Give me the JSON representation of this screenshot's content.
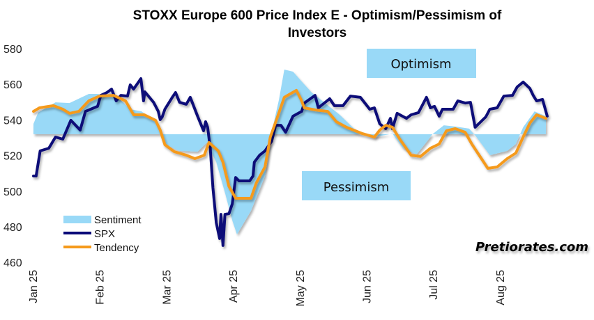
{
  "chart_data": {
    "type": "line",
    "title": "STOXX Europe 600 Price Index E - Optimism/Pessimism of Investors",
    "title_lines": [
      "STOXX Europe 600 Price Index E - Optimism/Pessimism of",
      "Investors"
    ],
    "xlabel": "",
    "ylabel": "",
    "x_unit": "months since Jan 1 2025",
    "xlim": [
      0,
      7.7
    ],
    "ylim": [
      460,
      580
    ],
    "yticks": [
      "580",
      "560",
      "540",
      "520",
      "500",
      "480",
      "460"
    ],
    "ytick_values": [
      580,
      560,
      540,
      520,
      500,
      480,
      460
    ],
    "xticks": [
      "Jan 25",
      "Feb 25",
      "Mar 25",
      "Apr 25",
      "May 25",
      "Jun 25",
      "Jul 25",
      "Aug 25"
    ],
    "xtick_values": [
      0,
      1,
      2,
      3,
      4,
      5,
      6,
      7
    ],
    "sentiment_baseline": 532,
    "legend_position": "bottom-left",
    "legend": [
      "Sentiment",
      "SPX",
      "Tendency"
    ],
    "annotations": {
      "optimism": "Optimism",
      "pessimism": "Pessimism",
      "brand": "Pretiorates.com"
    },
    "colors": {
      "sentiment": "#99d9f7",
      "spx": "#0a0a78",
      "tendency": "#f59a1b",
      "annotation_box": "#99d9f7"
    },
    "series": [
      {
        "name": "Sentiment",
        "kind": "area",
        "x": [
          0,
          0.07,
          0.33,
          0.54,
          0.83,
          0.96,
          1.24,
          1.45,
          1.62,
          1.83,
          1.9,
          1.97,
          2.18,
          2.46,
          2.6,
          2.74,
          2.87,
          2.98,
          3.05,
          3.26,
          3.47,
          3.57,
          3.68,
          3.76,
          3.89,
          4.02,
          4.17,
          4.59,
          4.86,
          5.11,
          5.38,
          5.53,
          5.74,
          5.9,
          5.98,
          6.15,
          6.32,
          6.53,
          6.64,
          6.84,
          7.1,
          7.23,
          7.34,
          7.51,
          7.68
        ],
        "y": [
          537.8,
          544.1,
          549.9,
          549.5,
          554.6,
          554.6,
          553.4,
          546,
          544.8,
          539,
          532,
          526.5,
          522.6,
          522.2,
          527.3,
          516.3,
          499.1,
          483.5,
          475.7,
          489,
          508.5,
          533.1,
          551.5,
          568.3,
          567.1,
          561.6,
          555.4,
          542.9,
          533.1,
          530.4,
          532.3,
          524.5,
          520.6,
          528,
          532,
          537,
          536.3,
          535.1,
          530.4,
          520.2,
          522.6,
          526.5,
          535.9,
          544.8,
          542.1
        ]
      },
      {
        "name": "SPX",
        "kind": "line",
        "x": [
          0,
          0.04,
          0.1,
          0.23,
          0.33,
          0.44,
          0.56,
          0.7,
          0.78,
          0.96,
          1.01,
          1.1,
          1.17,
          1.24,
          1.31,
          1.41,
          1.45,
          1.5,
          1.61,
          1.65,
          1.67,
          1.8,
          1.87,
          1.9,
          1.93,
          1.97,
          2.08,
          2.13,
          2.19,
          2.29,
          2.35,
          2.46,
          2.55,
          2.58,
          2.61,
          2.65,
          2.69,
          2.74,
          2.79,
          2.81,
          2.84,
          2.87,
          2.93,
          2.98,
          3.03,
          3.08,
          3.24,
          3.29,
          3.31,
          3.39,
          3.47,
          3.57,
          3.63,
          3.71,
          3.78,
          3.89,
          4.02,
          4.06,
          4.22,
          4.27,
          4.44,
          4.51,
          4.64,
          4.75,
          4.9,
          5.04,
          5.11,
          5.19,
          5.28,
          5.35,
          5.38,
          5.45,
          5.59,
          5.66,
          5.77,
          5.89,
          5.95,
          6.01,
          6.08,
          6.13,
          6.29,
          6.36,
          6.47,
          6.55,
          6.62,
          6.78,
          6.84,
          6.95,
          7.05,
          7.18,
          7.25,
          7.34,
          7.44,
          7.49,
          7.54,
          7.63,
          7.7
        ],
        "y": [
          508.5,
          508.5,
          522.6,
          524.1,
          530.4,
          529.2,
          539.8,
          534.3,
          544.8,
          547.6,
          553.8,
          555.4,
          557.3,
          550.7,
          553.8,
          553.4,
          559.7,
          557.3,
          563.2,
          550.7,
          555.8,
          549.9,
          544.8,
          540.2,
          541.7,
          546,
          552.7,
          555.4,
          549.9,
          548.8,
          552.7,
          542.1,
          533.9,
          539,
          535.9,
          524.1,
          501.9,
          482.3,
          473.4,
          487,
          469.5,
          487,
          487.4,
          492.9,
          507.7,
          505.8,
          505.8,
          508.5,
          516.3,
          520.2,
          522.6,
          528,
          537,
          537,
          533.1,
          542.1,
          544.8,
          549.5,
          553.8,
          546.8,
          551.9,
          548,
          548,
          553.4,
          552.7,
          546,
          546.8,
          537.8,
          535.1,
          540.9,
          535.1,
          543.7,
          540.9,
          542.9,
          544.1,
          552.7,
          546.8,
          547.6,
          542.1,
          546,
          546,
          550.7,
          549.5,
          549.9,
          535.9,
          541.7,
          546,
          546.8,
          553.4,
          553.8,
          558.5,
          561.3,
          557.7,
          553.8,
          550.7,
          551.5,
          542.1
        ]
      },
      {
        "name": "Tendency",
        "kind": "line",
        "x": [
          0,
          0.09,
          0.3,
          0.44,
          0.54,
          0.68,
          0.83,
          0.99,
          1.2,
          1.38,
          1.5,
          1.66,
          1.83,
          1.9,
          1.97,
          2.11,
          2.29,
          2.42,
          2.56,
          2.63,
          2.77,
          2.84,
          2.93,
          3.03,
          3.26,
          3.34,
          3.47,
          3.55,
          3.65,
          3.76,
          3.94,
          4.01,
          4.06,
          4.23,
          4.41,
          4.54,
          4.69,
          4.93,
          5.11,
          5.19,
          5.28,
          5.38,
          5.49,
          5.66,
          5.8,
          5.95,
          6.08,
          6.19,
          6.32,
          6.47,
          6.57,
          6.68,
          6.81,
          6.95,
          7.1,
          7.23,
          7.34,
          7.44,
          7.54,
          7.68
        ],
        "y": [
          544.8,
          546.8,
          548,
          546,
          543.7,
          544.8,
          550.7,
          553.4,
          553.8,
          550.7,
          542.9,
          542.9,
          539.8,
          534.3,
          526.1,
          522.2,
          520.2,
          518.3,
          520.2,
          527.3,
          522.6,
          516.3,
          502.7,
          496,
          496,
          504.6,
          513.6,
          530.4,
          540.9,
          552.7,
          556.6,
          551.5,
          546.8,
          545.6,
          544.8,
          539,
          535.9,
          532.3,
          530.4,
          534.3,
          537,
          535.9,
          529.2,
          520.2,
          519.5,
          524.1,
          526.5,
          533.9,
          535.1,
          533.1,
          526.5,
          520.2,
          512.8,
          513.6,
          518.3,
          521.4,
          530.4,
          538.2,
          542.9,
          540.9
        ]
      }
    ]
  }
}
